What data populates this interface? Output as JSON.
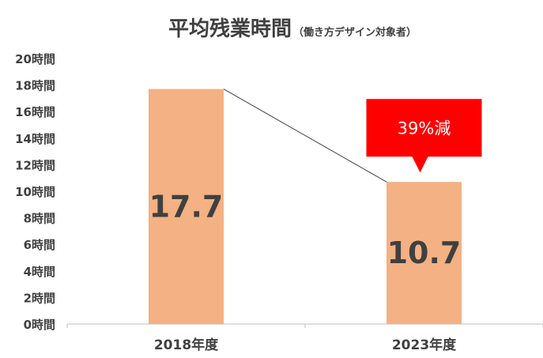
{
  "chart_data": {
    "type": "bar",
    "title": "平均残業時間",
    "subtitle": "（働き方デザイン対象者）",
    "categories": [
      "2018年度",
      "2023年度"
    ],
    "values": [
      17.7,
      10.7
    ],
    "data_labels": [
      "17.7",
      "10.7"
    ],
    "ylim": [
      0,
      20
    ],
    "yticks": [
      0,
      2,
      4,
      6,
      8,
      10,
      12,
      14,
      16,
      18,
      20
    ],
    "ytick_labels": [
      "0時間",
      "2時間",
      "4時間",
      "6時間",
      "8時間",
      "10時間",
      "12時間",
      "14時間",
      "16時間",
      "18時間",
      "20時間"
    ],
    "grid": false,
    "connector_line": true,
    "annotation": {
      "text": "39%減",
      "target_category": "2023年度"
    }
  },
  "colors": {
    "bar": "#F4B183",
    "callout": "#FF0000",
    "text": "#404040",
    "axis": "#BFBFBF",
    "connector": "#404040"
  }
}
